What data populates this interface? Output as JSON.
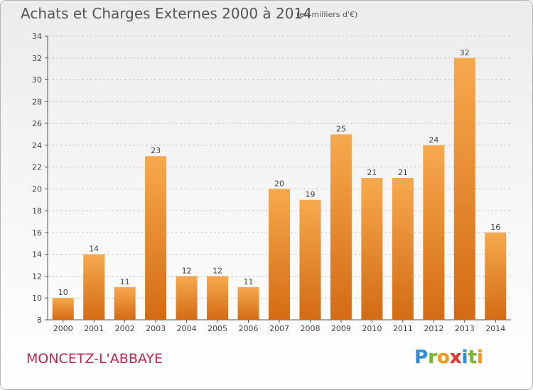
{
  "header": {
    "title": "Achats et Charges Externes 2000 à 2014",
    "unit_note": "(en milliers d'€)"
  },
  "footer": {
    "town": "MONCETZ-L'ABBAYE",
    "brand": [
      "P",
      "r",
      "o",
      "x",
      "i",
      "t",
      "i"
    ],
    "brand_colors": [
      "#2e8fd6",
      "#7cb82f",
      "#f39c12",
      "#e2332c",
      "#2e8fd6",
      "#7cb82f",
      "#f39c12"
    ]
  },
  "colors": {
    "bar_light": "#f7a94d",
    "bar_dark": "#d36b14",
    "grid": "#c8c8c8",
    "title": "#555555",
    "town": "#c7264d"
  },
  "chart_data": {
    "type": "bar",
    "categories": [
      "2000",
      "2001",
      "2002",
      "2003",
      "2004",
      "2005",
      "2006",
      "2007",
      "2008",
      "2009",
      "2010",
      "2011",
      "2012",
      "2013",
      "2014"
    ],
    "values": [
      10,
      14,
      11,
      23,
      12,
      12,
      11,
      20,
      19,
      25,
      21,
      21,
      24,
      32,
      16
    ],
    "data_labels": [
      "10",
      "14",
      "11",
      "23",
      "12",
      "12",
      "11",
      "20",
      "19",
      "25",
      "21",
      "21",
      "24",
      "32",
      "16"
    ],
    "ylim": [
      8,
      34
    ],
    "yticks": [
      8,
      10,
      12,
      14,
      16,
      18,
      20,
      22,
      24,
      26,
      28,
      30,
      32,
      34
    ],
    "grid": true,
    "title": "Achats et Charges Externes 2000 à 2014",
    "xlabel": "",
    "ylabel": ""
  }
}
